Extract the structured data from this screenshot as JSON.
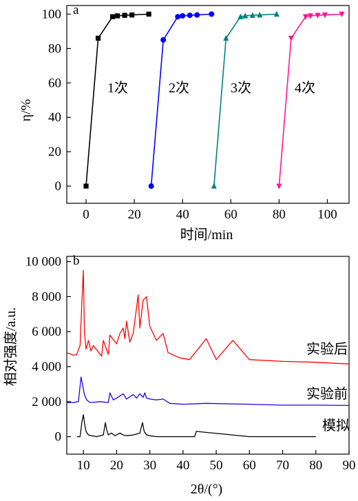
{
  "chart_data": [
    {
      "panel": "a",
      "type": "line",
      "xlabel": "时间/min",
      "ylabel": "η/%",
      "xlim": [
        -8,
        109
      ],
      "ylim": [
        -10,
        105
      ],
      "xticks": [
        0,
        20,
        40,
        60,
        80,
        100
      ],
      "yticks": [
        0,
        20,
        40,
        60,
        80,
        100
      ],
      "series": [
        {
          "name": "1次",
          "color": "#000000",
          "marker": "square",
          "x": [
            0,
            5,
            11,
            13,
            16,
            19,
            26
          ],
          "y": [
            0,
            86,
            98.5,
            99,
            99.3,
            99.5,
            100
          ]
        },
        {
          "name": "2次",
          "color": "#0000ff",
          "marker": "circle",
          "x": [
            27,
            32,
            38,
            40,
            43,
            46,
            52
          ],
          "y": [
            0,
            85,
            98.5,
            99,
            99.3,
            99.5,
            100
          ]
        },
        {
          "name": "3次",
          "color": "#008080",
          "marker": "triangle-up",
          "x": [
            53,
            58,
            64,
            66,
            69,
            72,
            79
          ],
          "y": [
            0,
            86,
            98.5,
            99,
            99.3,
            99.5,
            100
          ]
        },
        {
          "name": "4次",
          "color": "#ff1493",
          "marker": "triangle-down",
          "x": [
            80,
            85,
            91,
            93,
            96,
            99,
            106
          ],
          "y": [
            0,
            86,
            98.5,
            99,
            99.3,
            99.5,
            100
          ]
        }
      ]
    },
    {
      "panel": "b",
      "type": "line",
      "xlabel": "2θ/(°)",
      "ylabel": "相对强度/a.u.",
      "xlim": [
        5,
        90
      ],
      "ylim": [
        -1000,
        10300
      ],
      "xticks": [
        10,
        20,
        30,
        40,
        50,
        60,
        70,
        80,
        90
      ],
      "yticks": [
        0,
        2000,
        4000,
        6000,
        8000,
        10000
      ],
      "ytick_labels": [
        "0",
        "2 000",
        "4 000",
        "6 000",
        "8 000",
        "10 000"
      ],
      "series": [
        {
          "name": "实验后",
          "color": "#ff0000",
          "x": [
            5,
            7,
            8,
            9,
            9.5,
            10,
            10.3,
            10.8,
            11.5,
            12.3,
            13,
            15.5,
            16,
            17.5,
            18,
            20,
            21,
            22,
            22.5,
            23,
            24,
            25,
            26.5,
            27,
            28,
            29,
            30,
            32,
            34,
            35.5,
            39,
            42,
            47,
            50,
            55,
            60,
            70,
            80,
            90
          ],
          "y": [
            4800,
            4650,
            4700,
            5200,
            7500,
            9500,
            6000,
            5000,
            5500,
            4900,
            5200,
            4600,
            5500,
            4700,
            5800,
            5300,
            5900,
            6200,
            5600,
            6600,
            5400,
            5900,
            8100,
            6200,
            7800,
            8000,
            6300,
            5500,
            5900,
            4800,
            4500,
            4400,
            5600,
            4400,
            5500,
            4400,
            4300,
            4250,
            4150
          ]
        },
        {
          "name": "实验前",
          "color": "#2200ee",
          "x": [
            5,
            7,
            8.5,
            9.3,
            9.8,
            10.3,
            11,
            12,
            15,
            17.5,
            18,
            19,
            20,
            22,
            23,
            25,
            26,
            27,
            28,
            28.5,
            29,
            30,
            32,
            34,
            36,
            40,
            47,
            60,
            70,
            80,
            90
          ],
          "y": [
            1950,
            1950,
            2000,
            3400,
            2900,
            2400,
            2100,
            1950,
            2000,
            1950,
            2500,
            2100,
            2200,
            2450,
            2150,
            2400,
            2200,
            2450,
            2250,
            2500,
            2200,
            2150,
            2100,
            2150,
            1900,
            1850,
            1900,
            1850,
            1800,
            1800,
            1780
          ]
        },
        {
          "name": "模拟",
          "color": "#000000",
          "x": [
            8,
            9,
            9.6,
            10,
            10.4,
            10.8,
            11.5,
            12.5,
            14,
            16,
            16.6,
            17,
            17.5,
            18.5,
            19.5,
            21,
            22,
            23,
            25,
            27,
            27.4,
            27.8,
            28.3,
            29,
            30,
            32,
            35,
            43.5,
            44,
            60,
            80
          ],
          "y": [
            0,
            0,
            900,
            1250,
            700,
            300,
            100,
            50,
            0,
            100,
            800,
            400,
            100,
            200,
            50,
            200,
            100,
            50,
            100,
            200,
            500,
            800,
            300,
            100,
            50,
            0,
            0,
            0,
            300,
            0,
            0
          ]
        }
      ]
    }
  ]
}
